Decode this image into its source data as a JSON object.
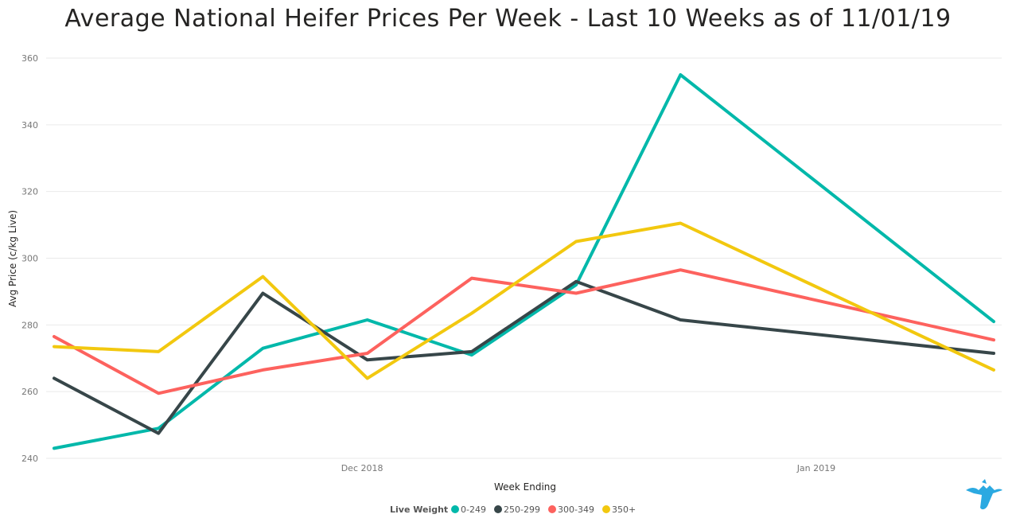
{
  "chart_data": {
    "type": "line",
    "title": "Average National Heifer Prices Per Week - Last 10 Weeks as of 11/01/19",
    "xlabel": "Week Ending",
    "ylabel": "Avg Price (c/kg Live)",
    "ylim": [
      240,
      360
    ],
    "yticks": [
      240,
      260,
      280,
      300,
      320,
      340,
      360
    ],
    "x_tick_labels": [
      {
        "label": "Dec 2018",
        "index": 2.95
      },
      {
        "label": "Jan 2019",
        "index": 7.3
      }
    ],
    "grid": true,
    "legend_title": "Live Weight",
    "legend_position": "bottom",
    "x_count": 10,
    "series": [
      {
        "name": "0-249",
        "color": "#01B8AA",
        "values": [
          243,
          249,
          273,
          281.5,
          271,
          292,
          355,
          null,
          null,
          281
        ]
      },
      {
        "name": "250-299",
        "color": "#374649",
        "values": [
          264,
          247.5,
          289.5,
          269.5,
          272,
          293,
          281.5,
          null,
          null,
          271.5
        ]
      },
      {
        "name": "300-349",
        "color": "#FD625E",
        "values": [
          276.5,
          259.5,
          266.5,
          271.5,
          294,
          289.5,
          296.5,
          null,
          null,
          275.5
        ]
      },
      {
        "name": "350+",
        "color": "#F2C80F",
        "values": [
          273.5,
          272,
          294.5,
          264,
          283.5,
          305,
          310.5,
          null,
          null,
          266.5
        ]
      }
    ]
  },
  "logo": {
    "name": "brand-logo",
    "color": "#2BA9E1"
  }
}
